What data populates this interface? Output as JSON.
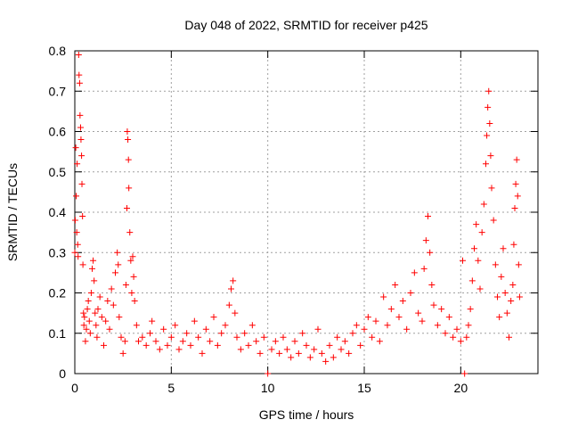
{
  "chart_data": {
    "type": "scatter",
    "title": "Day 048 of 2022, SRMTID for receiver p425",
    "xlabel": "GPS time / hours",
    "ylabel": "SRMTID / TECUs",
    "xlim": [
      0,
      24
    ],
    "ylim": [
      0,
      0.8
    ],
    "xticks": [
      0,
      5,
      10,
      15,
      20
    ],
    "yticks": [
      0,
      0.1,
      0.2,
      0.3,
      0.4,
      0.5,
      0.6,
      0.7,
      0.8
    ],
    "xtick_labels": [
      "0",
      "5",
      "10",
      "15",
      "20"
    ],
    "ytick_labels": [
      "0",
      "0.1",
      "0.2",
      "0.3",
      "0.4",
      "0.5",
      "0.6",
      "0.7",
      "0.8"
    ],
    "grid": true,
    "marker": "+",
    "marker_color": "#ff0000",
    "series": [
      {
        "name": "SRMTID",
        "points": [
          [
            0.0,
            0.3
          ],
          [
            0.02,
            0.38
          ],
          [
            0.05,
            0.56
          ],
          [
            0.07,
            0.44
          ],
          [
            0.1,
            0.35
          ],
          [
            0.12,
            0.52
          ],
          [
            0.15,
            0.32
          ],
          [
            0.17,
            0.29
          ],
          [
            0.2,
            0.79
          ],
          [
            0.22,
            0.74
          ],
          [
            0.25,
            0.72
          ],
          [
            0.27,
            0.64
          ],
          [
            0.3,
            0.61
          ],
          [
            0.32,
            0.58
          ],
          [
            0.35,
            0.54
          ],
          [
            0.37,
            0.47
          ],
          [
            0.4,
            0.39
          ],
          [
            0.42,
            0.27
          ],
          [
            0.45,
            0.15
          ],
          [
            0.47,
            0.12
          ],
          [
            0.5,
            0.14
          ],
          [
            0.55,
            0.08
          ],
          [
            0.6,
            0.11
          ],
          [
            0.65,
            0.16
          ],
          [
            0.7,
            0.18
          ],
          [
            0.75,
            0.13
          ],
          [
            0.8,
            0.1
          ],
          [
            0.85,
            0.2
          ],
          [
            0.9,
            0.26
          ],
          [
            0.95,
            0.28
          ],
          [
            1.0,
            0.23
          ],
          [
            1.05,
            0.15
          ],
          [
            1.1,
            0.12
          ],
          [
            1.15,
            0.09
          ],
          [
            1.2,
            0.16
          ],
          [
            1.3,
            0.19
          ],
          [
            1.4,
            0.14
          ],
          [
            1.5,
            0.07
          ],
          [
            1.6,
            0.13
          ],
          [
            1.7,
            0.18
          ],
          [
            1.8,
            0.11
          ],
          [
            1.9,
            0.21
          ],
          [
            2.0,
            0.17
          ],
          [
            2.1,
            0.25
          ],
          [
            2.2,
            0.3
          ],
          [
            2.25,
            0.27
          ],
          [
            2.3,
            0.14
          ],
          [
            2.4,
            0.09
          ],
          [
            2.5,
            0.05
          ],
          [
            2.6,
            0.08
          ],
          [
            2.65,
            0.22
          ],
          [
            2.7,
            0.41
          ],
          [
            2.72,
            0.6
          ],
          [
            2.75,
            0.58
          ],
          [
            2.78,
            0.53
          ],
          [
            2.8,
            0.46
          ],
          [
            2.85,
            0.35
          ],
          [
            2.9,
            0.28
          ],
          [
            2.95,
            0.2
          ],
          [
            3.0,
            0.29
          ],
          [
            3.05,
            0.24
          ],
          [
            3.1,
            0.18
          ],
          [
            3.2,
            0.12
          ],
          [
            3.3,
            0.08
          ],
          [
            3.5,
            0.09
          ],
          [
            3.7,
            0.07
          ],
          [
            3.9,
            0.1
          ],
          [
            4.0,
            0.13
          ],
          [
            4.2,
            0.08
          ],
          [
            4.4,
            0.06
          ],
          [
            4.6,
            0.11
          ],
          [
            4.8,
            0.07
          ],
          [
            5.0,
            0.09
          ],
          [
            5.2,
            0.12
          ],
          [
            5.4,
            0.06
          ],
          [
            5.6,
            0.08
          ],
          [
            5.8,
            0.1
          ],
          [
            6.0,
            0.07
          ],
          [
            6.2,
            0.13
          ],
          [
            6.4,
            0.09
          ],
          [
            6.6,
            0.05
          ],
          [
            6.8,
            0.11
          ],
          [
            7.0,
            0.08
          ],
          [
            7.2,
            0.14
          ],
          [
            7.4,
            0.07
          ],
          [
            7.6,
            0.1
          ],
          [
            7.8,
            0.12
          ],
          [
            8.0,
            0.17
          ],
          [
            8.1,
            0.21
          ],
          [
            8.2,
            0.23
          ],
          [
            8.3,
            0.15
          ],
          [
            8.4,
            0.09
          ],
          [
            8.6,
            0.06
          ],
          [
            8.8,
            0.1
          ],
          [
            9.0,
            0.07
          ],
          [
            9.2,
            0.12
          ],
          [
            9.4,
            0.08
          ],
          [
            9.6,
            0.05
          ],
          [
            9.8,
            0.09
          ],
          [
            10.0,
            0.0
          ],
          [
            10.2,
            0.06
          ],
          [
            10.4,
            0.08
          ],
          [
            10.6,
            0.05
          ],
          [
            10.8,
            0.09
          ],
          [
            11.0,
            0.06
          ],
          [
            11.2,
            0.04
          ],
          [
            11.4,
            0.08
          ],
          [
            11.6,
            0.05
          ],
          [
            11.8,
            0.1
          ],
          [
            12.0,
            0.07
          ],
          [
            12.2,
            0.04
          ],
          [
            12.4,
            0.06
          ],
          [
            12.6,
            0.11
          ],
          [
            12.8,
            0.05
          ],
          [
            13.0,
            0.03
          ],
          [
            13.2,
            0.07
          ],
          [
            13.4,
            0.04
          ],
          [
            13.6,
            0.09
          ],
          [
            13.8,
            0.06
          ],
          [
            14.0,
            0.08
          ],
          [
            14.2,
            0.05
          ],
          [
            14.4,
            0.1
          ],
          [
            14.6,
            0.12
          ],
          [
            14.8,
            0.07
          ],
          [
            15.0,
            0.11
          ],
          [
            15.2,
            0.14
          ],
          [
            15.4,
            0.09
          ],
          [
            15.6,
            0.13
          ],
          [
            15.8,
            0.08
          ],
          [
            16.0,
            0.19
          ],
          [
            16.2,
            0.12
          ],
          [
            16.4,
            0.16
          ],
          [
            16.6,
            0.22
          ],
          [
            16.8,
            0.14
          ],
          [
            17.0,
            0.18
          ],
          [
            17.2,
            0.11
          ],
          [
            17.4,
            0.2
          ],
          [
            17.6,
            0.25
          ],
          [
            17.8,
            0.15
          ],
          [
            18.0,
            0.13
          ],
          [
            18.1,
            0.26
          ],
          [
            18.2,
            0.33
          ],
          [
            18.3,
            0.39
          ],
          [
            18.4,
            0.3
          ],
          [
            18.5,
            0.22
          ],
          [
            18.6,
            0.17
          ],
          [
            18.8,
            0.12
          ],
          [
            19.0,
            0.16
          ],
          [
            19.2,
            0.1
          ],
          [
            19.4,
            0.14
          ],
          [
            19.6,
            0.09
          ],
          [
            19.8,
            0.11
          ],
          [
            20.0,
            0.08
          ],
          [
            20.1,
            0.28
          ],
          [
            20.2,
            0.0
          ],
          [
            20.3,
            0.09
          ],
          [
            20.4,
            0.12
          ],
          [
            20.5,
            0.16
          ],
          [
            20.6,
            0.23
          ],
          [
            20.7,
            0.31
          ],
          [
            20.8,
            0.37
          ],
          [
            20.9,
            0.28
          ],
          [
            21.0,
            0.21
          ],
          [
            21.1,
            0.35
          ],
          [
            21.2,
            0.42
          ],
          [
            21.3,
            0.52
          ],
          [
            21.35,
            0.59
          ],
          [
            21.4,
            0.66
          ],
          [
            21.45,
            0.7
          ],
          [
            21.5,
            0.62
          ],
          [
            21.55,
            0.54
          ],
          [
            21.6,
            0.46
          ],
          [
            21.7,
            0.38
          ],
          [
            21.8,
            0.27
          ],
          [
            21.9,
            0.19
          ],
          [
            22.0,
            0.14
          ],
          [
            22.1,
            0.24
          ],
          [
            22.2,
            0.31
          ],
          [
            22.3,
            0.2
          ],
          [
            22.4,
            0.15
          ],
          [
            22.5,
            0.09
          ],
          [
            22.6,
            0.18
          ],
          [
            22.7,
            0.22
          ],
          [
            22.75,
            0.32
          ],
          [
            22.8,
            0.41
          ],
          [
            22.85,
            0.47
          ],
          [
            22.9,
            0.53
          ],
          [
            22.95,
            0.44
          ],
          [
            23.0,
            0.27
          ],
          [
            23.05,
            0.19
          ]
        ]
      }
    ]
  }
}
